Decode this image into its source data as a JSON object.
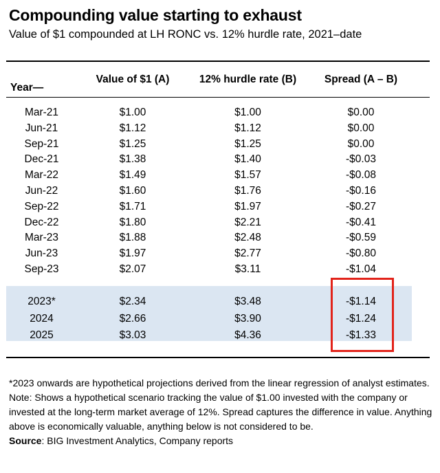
{
  "title": "Compounding value starting to exhaust",
  "subtitle": "Value of $1 compounded at LH RONC vs. 12% hurdle rate, 2021–date",
  "columns": {
    "year": "Year—",
    "value": "Value of $1 (A)",
    "hurdle": "12% hurdle rate (B)",
    "spread": "Spread (A – B)"
  },
  "rows": [
    {
      "year": "Mar-21",
      "value": "$1.00",
      "hurdle": "$1.00",
      "spread": "$0.00"
    },
    {
      "year": "Jun-21",
      "value": "$1.12",
      "hurdle": "$1.12",
      "spread": "$0.00"
    },
    {
      "year": "Sep-21",
      "value": "$1.25",
      "hurdle": "$1.25",
      "spread": "$0.00"
    },
    {
      "year": "Dec-21",
      "value": "$1.38",
      "hurdle": "$1.40",
      "spread": "-$0.03"
    },
    {
      "year": "Mar-22",
      "value": "$1.49",
      "hurdle": "$1.57",
      "spread": "-$0.08"
    },
    {
      "year": "Jun-22",
      "value": "$1.60",
      "hurdle": "$1.76",
      "spread": "-$0.16"
    },
    {
      "year": "Sep-22",
      "value": "$1.71",
      "hurdle": "$1.97",
      "spread": "-$0.27"
    },
    {
      "year": "Dec-22",
      "value": "$1.80",
      "hurdle": "$2.21",
      "spread": "-$0.41"
    },
    {
      "year": "Mar-23",
      "value": "$1.88",
      "hurdle": "$2.48",
      "spread": "-$0.59"
    },
    {
      "year": "Jun-23",
      "value": "$1.97",
      "hurdle": "$2.77",
      "spread": "-$0.80"
    },
    {
      "year": "Sep-23",
      "value": "$2.07",
      "hurdle": "$3.11",
      "spread": "-$1.04"
    }
  ],
  "projection_rows": [
    {
      "year": "2023*",
      "value": "$2.34",
      "hurdle": "$3.48",
      "spread": "-$1.14"
    },
    {
      "year": "2024",
      "value": "$2.66",
      "hurdle": "$3.90",
      "spread": "-$1.24"
    },
    {
      "year": "2025",
      "value": "$3.03",
      "hurdle": "$4.36",
      "spread": "-$1.33"
    }
  ],
  "colors": {
    "projection_band": "#dbe6f2",
    "highlight_box": "#e2231a"
  },
  "footnote": "*2023 onwards are hypothetical projections derived from the linear regression of analyst estimates.",
  "note": "Note: Shows a hypothetical scenario tracking the value of $1.00 invested with the company or invested at the long-term market average of 12%. Spread captures the difference in value. Anything above is economically valuable, anything below is not considered to be.",
  "source": {
    "label": "Source",
    "text": ": BIG Investment Analytics, Company reports"
  }
}
